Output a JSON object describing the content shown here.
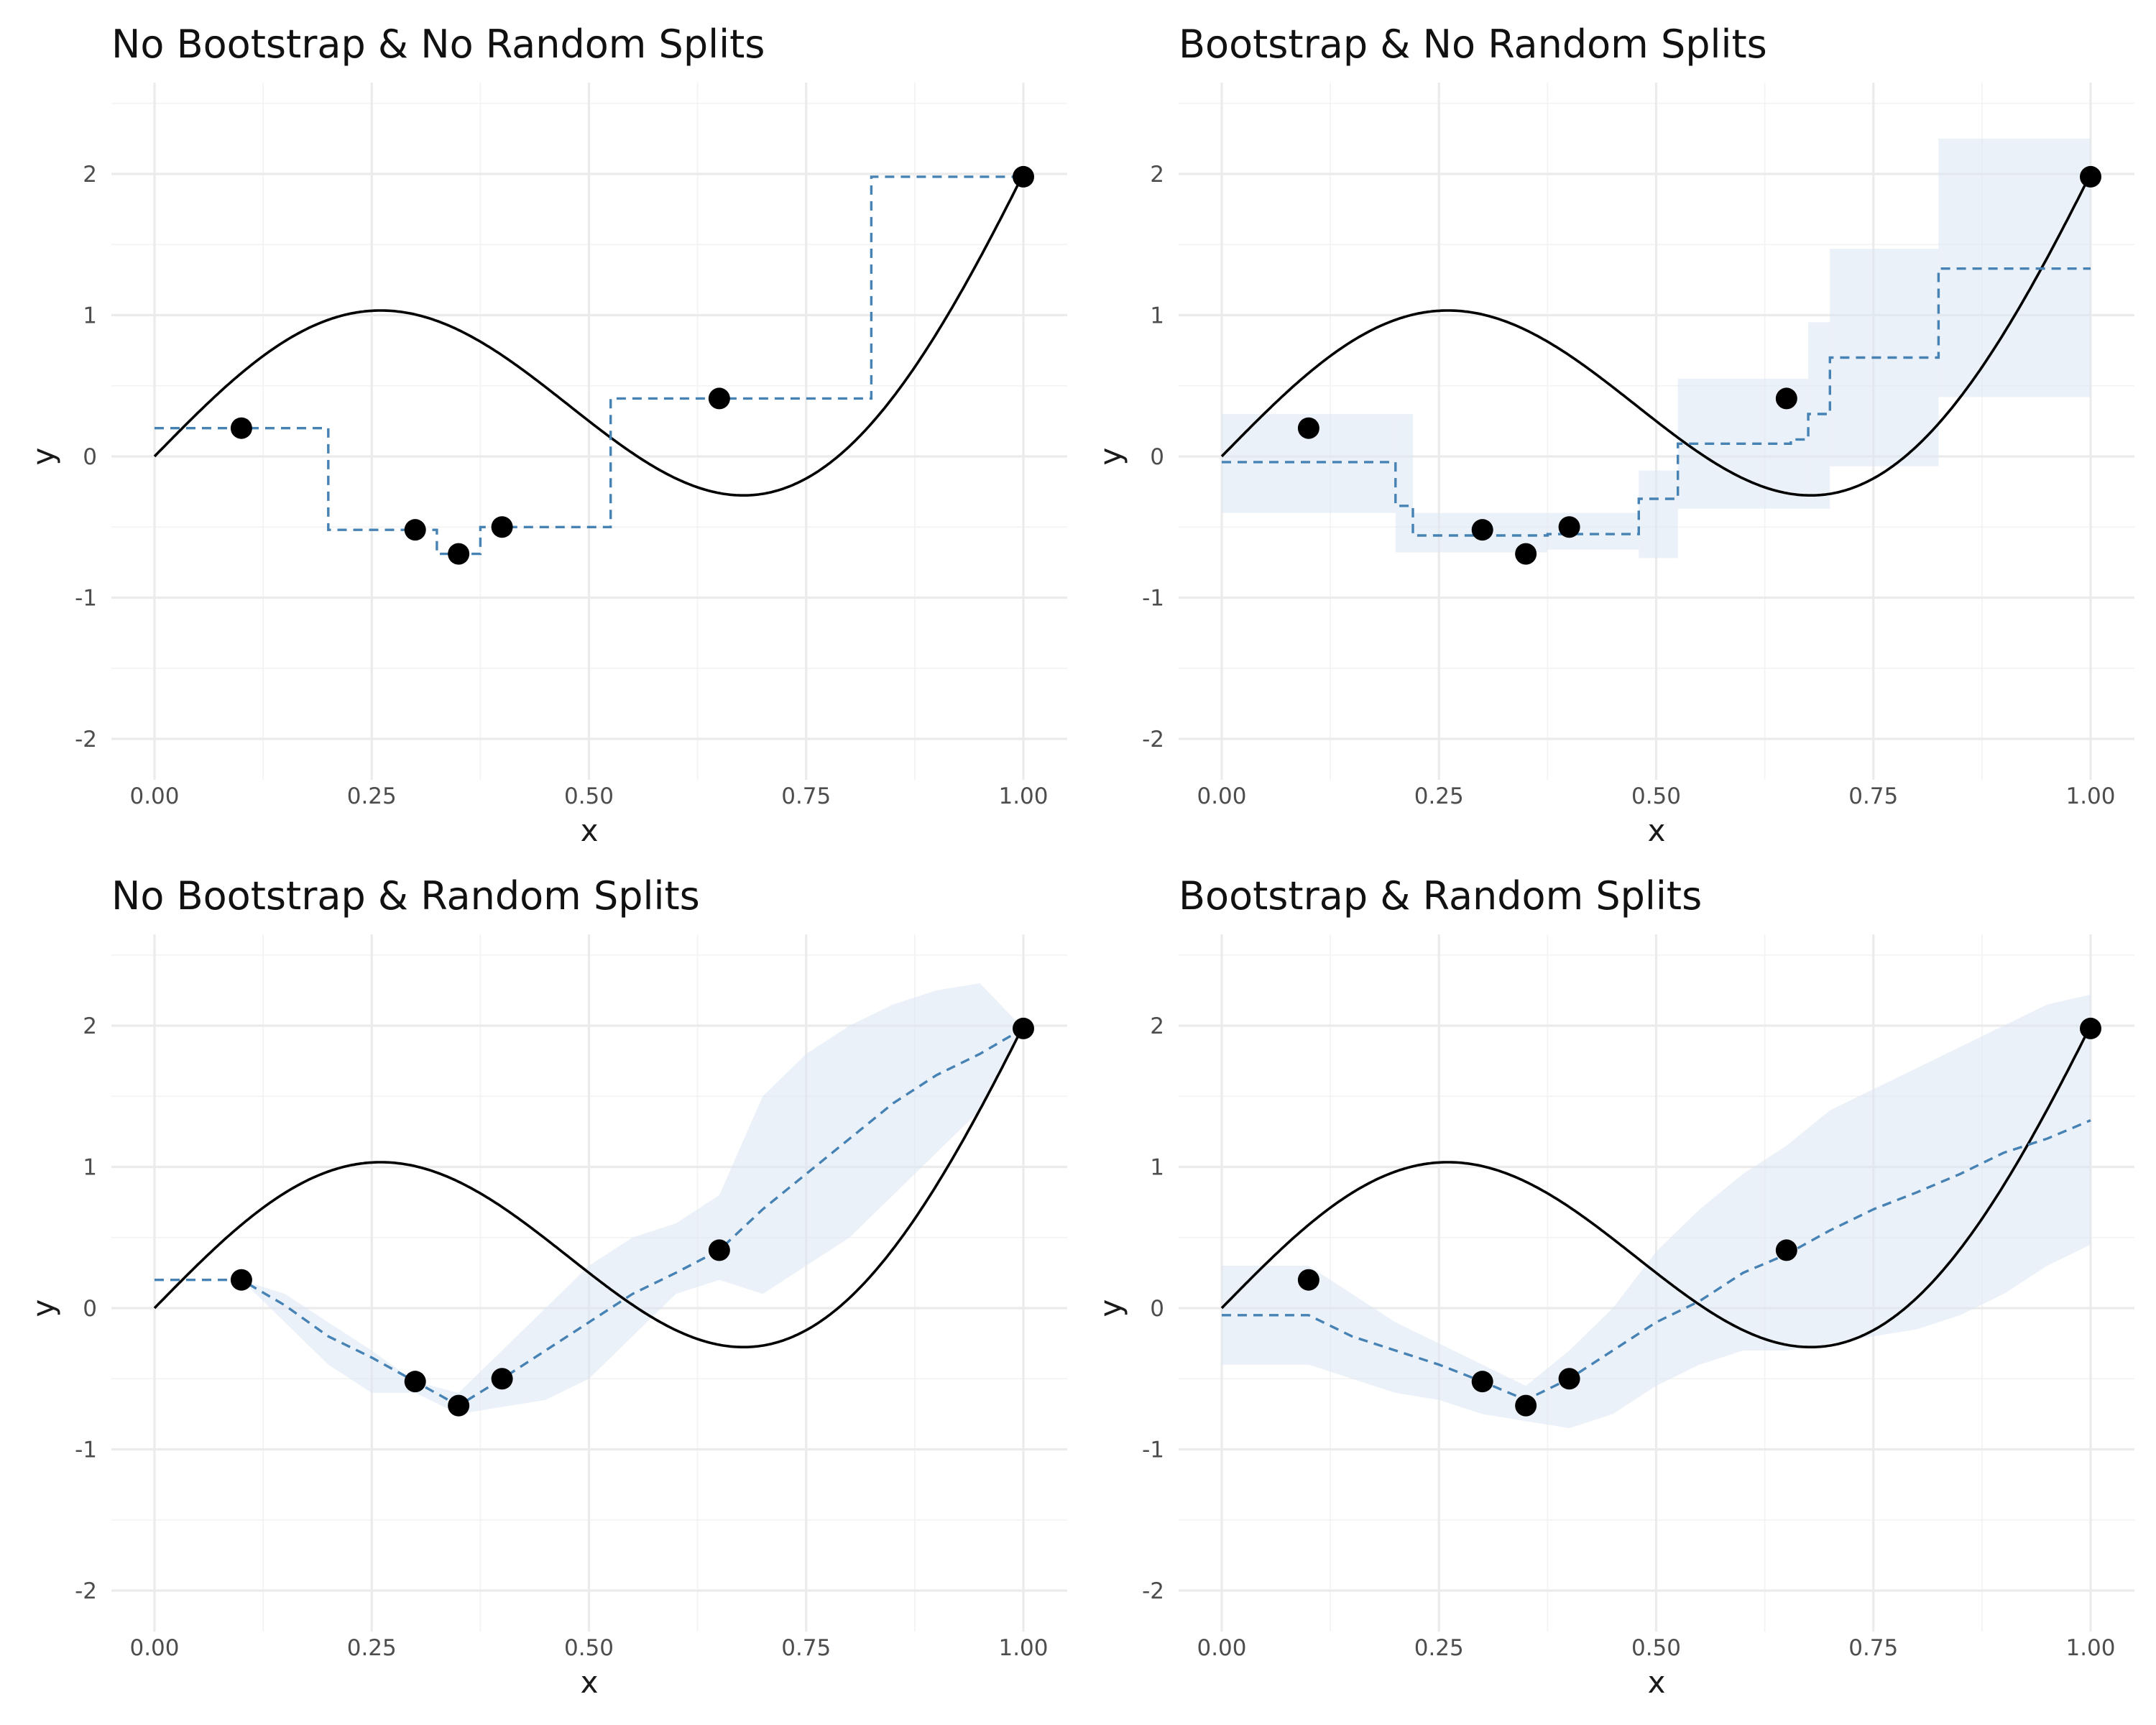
{
  "chart_data": [
    {
      "type": "line",
      "title": "No Bootstrap & No Random Splits",
      "xlabel": "x",
      "ylabel": "y",
      "xlim": [
        -0.05,
        1.05
      ],
      "ylim": [
        -2.25,
        2.55
      ],
      "xticks": [
        "0.00",
        "0.25",
        "0.50",
        "0.75",
        "1.00"
      ],
      "yticks": [
        "-2",
        "-1",
        "0",
        "1",
        "2"
      ],
      "grid": true,
      "true_function": "sin(2*pi*x)+2*x^3 sampled on [0,1]",
      "points": [
        [
          0.1,
          0.2
        ],
        [
          0.3,
          -0.52
        ],
        [
          0.35,
          -0.69
        ],
        [
          0.4,
          -0.5
        ],
        [
          0.65,
          0.41
        ],
        [
          1.0,
          1.98
        ]
      ],
      "prediction": [
        [
          0.0,
          0.2
        ],
        [
          0.2,
          0.2
        ],
        [
          0.2,
          -0.52
        ],
        [
          0.325,
          -0.52
        ],
        [
          0.325,
          -0.69
        ],
        [
          0.375,
          -0.69
        ],
        [
          0.375,
          -0.5
        ],
        [
          0.525,
          -0.5
        ],
        [
          0.525,
          0.41
        ],
        [
          0.825,
          0.41
        ],
        [
          0.825,
          1.98
        ],
        [
          1.0,
          1.98
        ]
      ],
      "band_upper": [],
      "band_lower": [],
      "band_step": false
    },
    {
      "type": "line",
      "title": "Bootstrap & No Random Splits",
      "xlabel": "x",
      "ylabel": "y",
      "xlim": [
        -0.05,
        1.05
      ],
      "ylim": [
        -2.25,
        2.55
      ],
      "xticks": [
        "0.00",
        "0.25",
        "0.50",
        "0.75",
        "1.00"
      ],
      "yticks": [
        "-2",
        "-1",
        "0",
        "1",
        "2"
      ],
      "grid": true,
      "points": [
        [
          0.1,
          0.2
        ],
        [
          0.3,
          -0.52
        ],
        [
          0.35,
          -0.69
        ],
        [
          0.4,
          -0.5
        ],
        [
          0.65,
          0.41
        ],
        [
          1.0,
          1.98
        ]
      ],
      "prediction": [
        [
          0.0,
          -0.04
        ],
        [
          0.2,
          -0.04
        ],
        [
          0.2,
          -0.35
        ],
        [
          0.22,
          -0.35
        ],
        [
          0.22,
          -0.56
        ],
        [
          0.375,
          -0.56
        ],
        [
          0.375,
          -0.55
        ],
        [
          0.48,
          -0.55
        ],
        [
          0.48,
          -0.3
        ],
        [
          0.525,
          -0.3
        ],
        [
          0.525,
          0.09
        ],
        [
          0.655,
          0.09
        ],
        [
          0.655,
          0.12
        ],
        [
          0.675,
          0.12
        ],
        [
          0.675,
          0.3
        ],
        [
          0.7,
          0.3
        ],
        [
          0.7,
          0.7
        ],
        [
          0.825,
          0.7
        ],
        [
          0.825,
          1.33
        ],
        [
          1.0,
          1.33
        ]
      ],
      "band_upper": [
        [
          0.0,
          0.3
        ],
        [
          0.2,
          0.3
        ],
        [
          0.22,
          -0.4
        ],
        [
          0.375,
          -0.4
        ],
        [
          0.48,
          -0.1
        ],
        [
          0.525,
          0.55
        ],
        [
          0.675,
          0.95
        ],
        [
          0.7,
          1.47
        ],
        [
          0.825,
          2.25
        ],
        [
          1.0,
          2.25
        ]
      ],
      "band_lower": [
        [
          0.0,
          -0.4
        ],
        [
          0.2,
          -0.68
        ],
        [
          0.22,
          -0.68
        ],
        [
          0.375,
          -0.66
        ],
        [
          0.48,
          -0.72
        ],
        [
          0.525,
          -0.37
        ],
        [
          0.675,
          -0.37
        ],
        [
          0.7,
          -0.07
        ],
        [
          0.825,
          0.42
        ],
        [
          1.0,
          0.42
        ]
      ],
      "band_step": true
    },
    {
      "type": "line",
      "title": "No Bootstrap & Random Splits",
      "xlabel": "x",
      "ylabel": "y",
      "xlim": [
        -0.05,
        1.05
      ],
      "ylim": [
        -2.25,
        2.55
      ],
      "xticks": [
        "0.00",
        "0.25",
        "0.50",
        "0.75",
        "1.00"
      ],
      "yticks": [
        "-2",
        "-1",
        "0",
        "1",
        "2"
      ],
      "grid": true,
      "points": [
        [
          0.1,
          0.2
        ],
        [
          0.3,
          -0.52
        ],
        [
          0.35,
          -0.69
        ],
        [
          0.4,
          -0.5
        ],
        [
          0.65,
          0.41
        ],
        [
          1.0,
          1.98
        ]
      ],
      "prediction": [
        [
          0.0,
          0.2
        ],
        [
          0.1,
          0.2
        ],
        [
          0.15,
          0.02
        ],
        [
          0.2,
          -0.2
        ],
        [
          0.25,
          -0.35
        ],
        [
          0.3,
          -0.52
        ],
        [
          0.35,
          -0.69
        ],
        [
          0.4,
          -0.5
        ],
        [
          0.45,
          -0.3
        ],
        [
          0.5,
          -0.1
        ],
        [
          0.55,
          0.1
        ],
        [
          0.6,
          0.25
        ],
        [
          0.65,
          0.41
        ],
        [
          0.7,
          0.7
        ],
        [
          0.75,
          0.95
        ],
        [
          0.8,
          1.2
        ],
        [
          0.85,
          1.45
        ],
        [
          0.9,
          1.65
        ],
        [
          0.95,
          1.8
        ],
        [
          1.0,
          1.98
        ]
      ],
      "band_upper": [
        [
          0.1,
          0.2
        ],
        [
          0.15,
          0.1
        ],
        [
          0.2,
          -0.1
        ],
        [
          0.25,
          -0.3
        ],
        [
          0.3,
          -0.52
        ],
        [
          0.35,
          -0.6
        ],
        [
          0.4,
          -0.3
        ],
        [
          0.45,
          0.0
        ],
        [
          0.5,
          0.3
        ],
        [
          0.55,
          0.5
        ],
        [
          0.6,
          0.6
        ],
        [
          0.65,
          0.8
        ],
        [
          0.7,
          1.5
        ],
        [
          0.75,
          1.8
        ],
        [
          0.8,
          2.0
        ],
        [
          0.85,
          2.15
        ],
        [
          0.9,
          2.25
        ],
        [
          0.95,
          2.3
        ],
        [
          1.0,
          1.98
        ]
      ],
      "band_lower": [
        [
          0.1,
          0.2
        ],
        [
          0.15,
          -0.1
        ],
        [
          0.2,
          -0.4
        ],
        [
          0.25,
          -0.6
        ],
        [
          0.3,
          -0.6
        ],
        [
          0.35,
          -0.75
        ],
        [
          0.4,
          -0.7
        ],
        [
          0.45,
          -0.65
        ],
        [
          0.5,
          -0.5
        ],
        [
          0.55,
          -0.2
        ],
        [
          0.6,
          0.1
        ],
        [
          0.65,
          0.2
        ],
        [
          0.7,
          0.1
        ],
        [
          0.75,
          0.3
        ],
        [
          0.8,
          0.5
        ],
        [
          0.85,
          0.8
        ],
        [
          0.9,
          1.1
        ],
        [
          0.95,
          1.4
        ],
        [
          1.0,
          1.98
        ]
      ],
      "band_step": false
    },
    {
      "type": "line",
      "title": "Bootstrap & Random Splits",
      "xlabel": "x",
      "ylabel": "y",
      "xlim": [
        -0.05,
        1.05
      ],
      "ylim": [
        -2.25,
        2.55
      ],
      "xticks": [
        "0.00",
        "0.25",
        "0.50",
        "0.75",
        "1.00"
      ],
      "yticks": [
        "-2",
        "-1",
        "0",
        "1",
        "2"
      ],
      "grid": true,
      "points": [
        [
          0.1,
          0.2
        ],
        [
          0.3,
          -0.52
        ],
        [
          0.35,
          -0.69
        ],
        [
          0.4,
          -0.5
        ],
        [
          0.65,
          0.41
        ],
        [
          1.0,
          1.98
        ]
      ],
      "prediction": [
        [
          0.0,
          -0.05
        ],
        [
          0.1,
          -0.05
        ],
        [
          0.15,
          -0.2
        ],
        [
          0.2,
          -0.3
        ],
        [
          0.25,
          -0.4
        ],
        [
          0.3,
          -0.52
        ],
        [
          0.35,
          -0.65
        ],
        [
          0.4,
          -0.5
        ],
        [
          0.45,
          -0.3
        ],
        [
          0.5,
          -0.1
        ],
        [
          0.55,
          0.05
        ],
        [
          0.6,
          0.25
        ],
        [
          0.65,
          0.38
        ],
        [
          0.7,
          0.55
        ],
        [
          0.75,
          0.7
        ],
        [
          0.8,
          0.82
        ],
        [
          0.85,
          0.95
        ],
        [
          0.9,
          1.1
        ],
        [
          0.95,
          1.2
        ],
        [
          1.0,
          1.33
        ]
      ],
      "band_upper": [
        [
          0.0,
          0.3
        ],
        [
          0.1,
          0.3
        ],
        [
          0.15,
          0.1
        ],
        [
          0.2,
          -0.1
        ],
        [
          0.25,
          -0.25
        ],
        [
          0.3,
          -0.4
        ],
        [
          0.35,
          -0.55
        ],
        [
          0.4,
          -0.3
        ],
        [
          0.45,
          0.0
        ],
        [
          0.5,
          0.4
        ],
        [
          0.55,
          0.7
        ],
        [
          0.6,
          0.95
        ],
        [
          0.65,
          1.15
        ],
        [
          0.7,
          1.4
        ],
        [
          0.75,
          1.55
        ],
        [
          0.8,
          1.7
        ],
        [
          0.85,
          1.85
        ],
        [
          0.9,
          2.0
        ],
        [
          0.95,
          2.15
        ],
        [
          1.0,
          2.22
        ]
      ],
      "band_lower": [
        [
          0.0,
          -0.4
        ],
        [
          0.1,
          -0.4
        ],
        [
          0.15,
          -0.5
        ],
        [
          0.2,
          -0.6
        ],
        [
          0.25,
          -0.65
        ],
        [
          0.3,
          -0.75
        ],
        [
          0.35,
          -0.8
        ],
        [
          0.4,
          -0.85
        ],
        [
          0.45,
          -0.75
        ],
        [
          0.5,
          -0.55
        ],
        [
          0.55,
          -0.4
        ],
        [
          0.6,
          -0.3
        ],
        [
          0.65,
          -0.3
        ],
        [
          0.7,
          -0.25
        ],
        [
          0.75,
          -0.2
        ],
        [
          0.8,
          -0.15
        ],
        [
          0.85,
          -0.05
        ],
        [
          0.9,
          0.1
        ],
        [
          0.95,
          0.3
        ],
        [
          1.0,
          0.45
        ]
      ],
      "band_step": false
    }
  ]
}
